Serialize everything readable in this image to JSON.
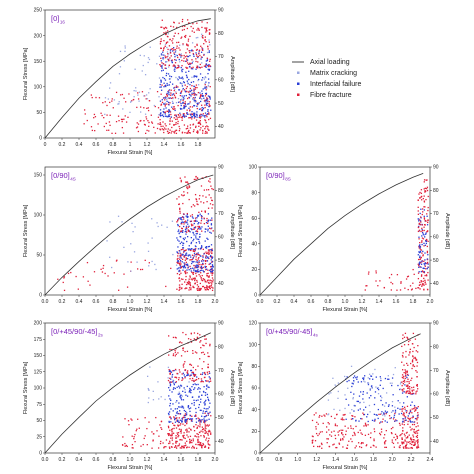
{
  "figure": {
    "legend": [
      {
        "label": "Axial loading",
        "kind": "line",
        "color": "#333333"
      },
      {
        "label": "Matrix cracking",
        "kind": "dot",
        "color": "#9aa7e0"
      },
      {
        "label": "Interfacial failure",
        "kind": "dot",
        "color": "#2a3ed6"
      },
      {
        "label": "Fibre fracture",
        "kind": "dot",
        "color": "#e0203a"
      }
    ]
  },
  "chart_data": [
    {
      "type": "scatter",
      "title": "[0]",
      "title_sub": "16",
      "xlabel": "Flexural Strain [%]",
      "ylabel": "Flexural Stress [MPa]",
      "y2label": "Amplitude [dB]",
      "xlim": [
        0,
        2.0
      ],
      "ylim": [
        0,
        250
      ],
      "y2lim": [
        35,
        90
      ],
      "x_ticks": [
        "0",
        "0.2",
        "0.4",
        "0.6",
        "0.8",
        "1",
        "1.2",
        "1.4",
        "1.6",
        "1.8"
      ],
      "y_ticks": [
        "0",
        "50",
        "100",
        "150",
        "200",
        "250"
      ],
      "y2_ticks": [
        "40",
        "50",
        "60",
        "70",
        "80",
        "90"
      ],
      "curve": {
        "x": [
          0,
          0.2,
          0.4,
          0.6,
          0.8,
          1.0,
          1.2,
          1.4,
          1.6,
          1.8,
          1.95
        ],
        "y": [
          0,
          40,
          78,
          110,
          140,
          164,
          185,
          203,
          218,
          229,
          233
        ]
      },
      "clusters": [
        {
          "x": [
            0.45,
            1.55
          ],
          "y": [
            37,
            55
          ],
          "n": 110,
          "class": "Fibre fracture"
        },
        {
          "x": [
            1.35,
            1.95
          ],
          "y": [
            37,
            58
          ],
          "n": 260,
          "class": "Fibre fracture"
        },
        {
          "x": [
            1.35,
            1.95
          ],
          "y": [
            44,
            74
          ],
          "n": 330,
          "class": "Interfacial failure"
        },
        {
          "x": [
            0.7,
            1.35
          ],
          "y": [
            45,
            78
          ],
          "n": 50,
          "class": "Matrix cracking"
        },
        {
          "x": [
            1.35,
            1.95
          ],
          "y": [
            50,
            80
          ],
          "n": 70,
          "class": "Matrix cracking"
        },
        {
          "x": [
            1.35,
            1.95
          ],
          "y": [
            65,
            86
          ],
          "n": 210,
          "class": "Fibre fracture"
        }
      ]
    },
    {
      "type": "scatter",
      "title": "[0/90]",
      "title_sub": "4S",
      "xlabel": "Flexural Strain [%]",
      "ylabel": "Flexural Stress [MPa]",
      "y2label": "Amplitude [dB]",
      "xlim": [
        0,
        2.0
      ],
      "ylim": [
        0,
        160
      ],
      "y2lim": [
        35,
        90
      ],
      "x_ticks": [
        "0.0",
        "0.2",
        "0.4",
        "0.6",
        "0.8",
        "1.0",
        "1.2",
        "1.4",
        "1.6",
        "1.8",
        "2.0"
      ],
      "y_ticks": [
        "0",
        "50",
        "100",
        "150"
      ],
      "y2_ticks": [
        "40",
        "50",
        "60",
        "70",
        "80",
        "90"
      ],
      "curve": {
        "x": [
          0,
          0.2,
          0.4,
          0.6,
          0.8,
          1.0,
          1.2,
          1.4,
          1.6,
          1.8,
          1.98
        ],
        "y": [
          0,
          22,
          42,
          61,
          79,
          95,
          110,
          123,
          134,
          144,
          150
        ]
      },
      "clusters": [
        {
          "x": [
            0.15,
            1.5
          ],
          "y": [
            37,
            50
          ],
          "n": 35,
          "class": "Fibre fracture"
        },
        {
          "x": [
            1.55,
            1.98
          ],
          "y": [
            37,
            55
          ],
          "n": 260,
          "class": "Fibre fracture"
        },
        {
          "x": [
            1.55,
            1.98
          ],
          "y": [
            45,
            70
          ],
          "n": 280,
          "class": "Interfacial failure"
        },
        {
          "x": [
            0.7,
            1.55
          ],
          "y": [
            45,
            70
          ],
          "n": 30,
          "class": "Matrix cracking"
        },
        {
          "x": [
            1.55,
            1.98
          ],
          "y": [
            62,
            86
          ],
          "n": 130,
          "class": "Fibre fracture"
        }
      ]
    },
    {
      "type": "scatter",
      "title": "[0/90]",
      "title_sub": "8S",
      "xlabel": "Flexural Strain [%]",
      "ylabel": "Flexural Stress [MPa]",
      "y2label": "Amplitude [dB]",
      "xlim": [
        0,
        2.0
      ],
      "ylim": [
        0,
        100
      ],
      "y2lim": [
        35,
        90
      ],
      "x_ticks": [
        "0.0",
        "0.2",
        "0.4",
        "0.6",
        "0.8",
        "1.0",
        "1.2",
        "1.4",
        "1.6",
        "1.8",
        "2.0"
      ],
      "y_ticks": [
        "0",
        "20",
        "40",
        "60",
        "80",
        "100"
      ],
      "y2_ticks": [
        "40",
        "50",
        "60",
        "70",
        "80",
        "90"
      ],
      "curve": {
        "x": [
          0,
          0.2,
          0.4,
          0.6,
          0.8,
          1.0,
          1.2,
          1.4,
          1.6,
          1.8,
          1.92
        ],
        "y": [
          0,
          14,
          28,
          40,
          52,
          62,
          71,
          79,
          86,
          92,
          95
        ]
      },
      "clusters": [
        {
          "x": [
            1.2,
            1.86
          ],
          "y": [
            37,
            46
          ],
          "n": 35,
          "class": "Fibre fracture"
        },
        {
          "x": [
            1.86,
            1.98
          ],
          "y": [
            37,
            60
          ],
          "n": 80,
          "class": "Fibre fracture"
        },
        {
          "x": [
            1.86,
            1.98
          ],
          "y": [
            45,
            72
          ],
          "n": 70,
          "class": "Interfacial failure"
        },
        {
          "x": [
            1.86,
            1.98
          ],
          "y": [
            62,
            86
          ],
          "n": 70,
          "class": "Fibre fracture"
        }
      ]
    },
    {
      "type": "scatter",
      "title": "[0/+45/90/-45]",
      "title_sub": "2s",
      "xlabel": "Flexural Strain [%]",
      "ylabel": "Flexural Stress [MPa]",
      "y2label": "Amplitude [dB]",
      "xlim": [
        0,
        2.0
      ],
      "ylim": [
        0,
        200
      ],
      "y2lim": [
        35,
        90
      ],
      "x_ticks": [
        "0.0",
        "0.2",
        "0.4",
        "0.6",
        "0.8",
        "1.0",
        "1.2",
        "1.4",
        "1.6",
        "1.8",
        "2.0"
      ],
      "y_ticks": [
        "0",
        "25",
        "50",
        "75",
        "100",
        "125",
        "150",
        "175",
        "200"
      ],
      "y2_ticks": [
        "40",
        "50",
        "60",
        "70",
        "80",
        "90"
      ],
      "curve": {
        "x": [
          0,
          0.2,
          0.4,
          0.6,
          0.8,
          1.0,
          1.2,
          1.4,
          1.6,
          1.8,
          1.95
        ],
        "y": [
          0,
          29,
          55,
          80,
          101,
          120,
          137,
          152,
          165,
          176,
          185
        ]
      },
      "clusters": [
        {
          "x": [
            0.9,
            1.45
          ],
          "y": [
            37,
            50
          ],
          "n": 55,
          "class": "Fibre fracture"
        },
        {
          "x": [
            1.45,
            1.95
          ],
          "y": [
            37,
            52
          ],
          "n": 240,
          "class": "Fibre fracture"
        },
        {
          "x": [
            1.45,
            1.95
          ],
          "y": [
            48,
            70
          ],
          "n": 230,
          "class": "Interfacial failure"
        },
        {
          "x": [
            1.2,
            1.7
          ],
          "y": [
            55,
            72
          ],
          "n": 25,
          "class": "Matrix cracking"
        },
        {
          "x": [
            1.45,
            1.95
          ],
          "y": [
            65,
            86
          ],
          "n": 140,
          "class": "Fibre fracture"
        }
      ]
    },
    {
      "type": "scatter",
      "title": "[0/+45/90/-45]",
      "title_sub": "4s",
      "xlabel": "Flexural Strain [%]",
      "ylabel": "Flexural Stress [MPa]",
      "y2label": "Amplitude [dB]",
      "xlim": [
        0.6,
        2.4
      ],
      "ylim": [
        0,
        120
      ],
      "y2lim": [
        35,
        90
      ],
      "x_ticks": [
        "0.6",
        "0.8",
        "1.0",
        "1.2",
        "1.4",
        "1.6",
        "1.8",
        "2.0",
        "2.2",
        "2.4"
      ],
      "y_ticks": [
        "0",
        "20",
        "40",
        "60",
        "80",
        "100",
        "120"
      ],
      "y2_ticks": [
        "40",
        "50",
        "60",
        "70",
        "80",
        "90"
      ],
      "curve": {
        "x": [
          0.6,
          0.8,
          1.0,
          1.2,
          1.4,
          1.6,
          1.8,
          2.0,
          2.2,
          2.3
        ],
        "y": [
          0,
          16,
          32,
          47,
          61,
          74,
          86,
          97,
          106,
          110
        ]
      },
      "clusters": [
        {
          "x": [
            1.15,
            2.1
          ],
          "y": [
            37,
            52
          ],
          "n": 190,
          "class": "Fibre fracture"
        },
        {
          "x": [
            2.1,
            2.28
          ],
          "y": [
            37,
            55
          ],
          "n": 140,
          "class": "Fibre fracture"
        },
        {
          "x": [
            1.5,
            2.28
          ],
          "y": [
            48,
            68
          ],
          "n": 150,
          "class": "Interfacial failure"
        },
        {
          "x": [
            1.3,
            2.1
          ],
          "y": [
            50,
            72
          ],
          "n": 60,
          "class": "Matrix cracking"
        },
        {
          "x": [
            2.1,
            2.28
          ],
          "y": [
            60,
            86
          ],
          "n": 120,
          "class": "Fibre fracture"
        }
      ]
    }
  ]
}
